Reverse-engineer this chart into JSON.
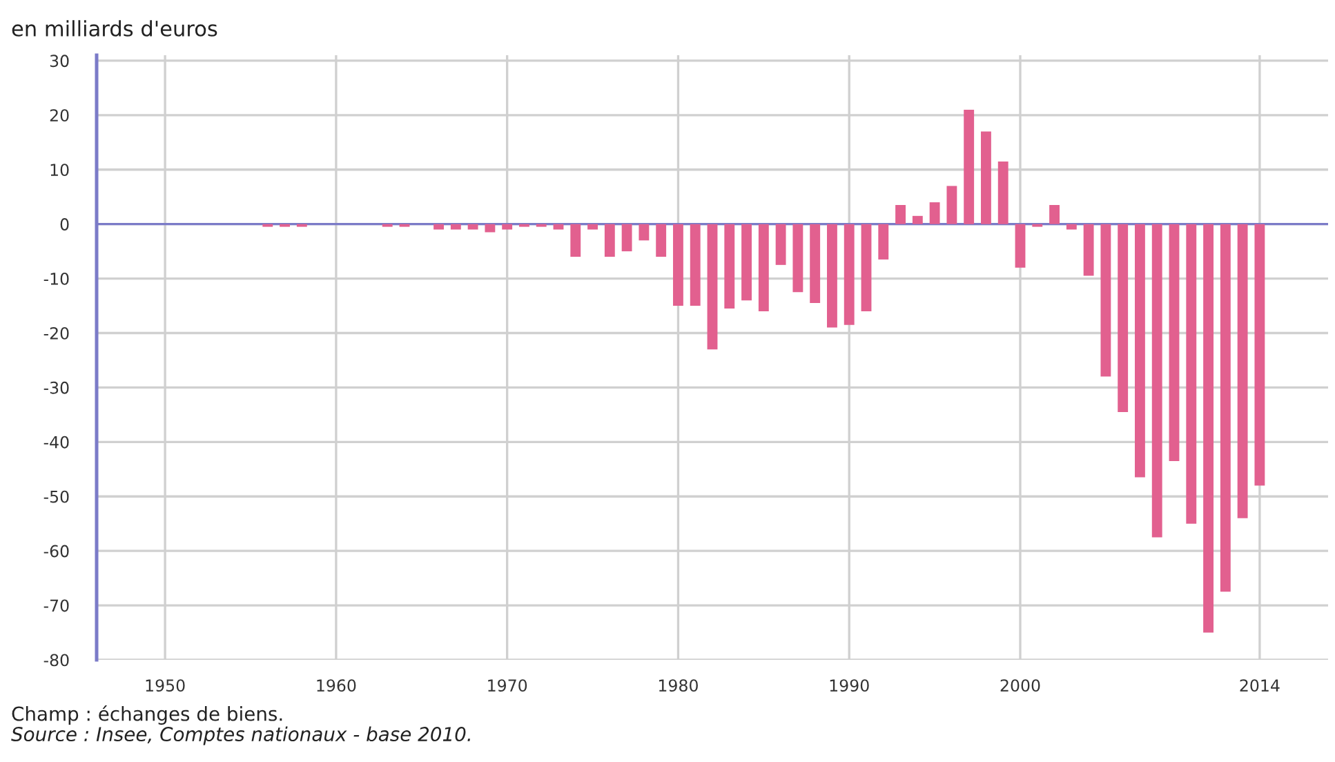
{
  "chart_data": {
    "type": "bar",
    "ylabel": "en milliards d'euros",
    "x": [
      1956,
      1957,
      1958,
      1959,
      1960,
      1961,
      1962,
      1963,
      1964,
      1965,
      1966,
      1967,
      1968,
      1969,
      1970,
      1971,
      1972,
      1973,
      1974,
      1975,
      1976,
      1977,
      1978,
      1979,
      1980,
      1981,
      1982,
      1983,
      1984,
      1985,
      1986,
      1987,
      1988,
      1989,
      1990,
      1991,
      1992,
      1993,
      1994,
      1995,
      1996,
      1997,
      1998,
      1999,
      2000,
      2001,
      2002,
      2003,
      2004,
      2005,
      2006,
      2007,
      2008,
      2009,
      2010,
      2011,
      2012,
      2013,
      2014
    ],
    "values": [
      -0.5,
      -0.5,
      -0.5,
      0,
      0,
      0,
      0,
      -0.5,
      -0.5,
      0,
      -1,
      -1,
      -1,
      -1.5,
      -1,
      -0.5,
      -0.5,
      -1,
      -6,
      -1,
      -6,
      -5,
      -3,
      -6,
      -15,
      -15,
      -23,
      -15.5,
      -14,
      -16,
      -7.5,
      -12.5,
      -14.5,
      -19,
      -18.5,
      -16,
      -6.5,
      3.5,
      1.5,
      4,
      7,
      21,
      17,
      11.5,
      -8,
      -0.5,
      3.5,
      -1,
      -9.5,
      -28,
      -34.5,
      -46.5,
      -57.5,
      -43.5,
      -55,
      -75,
      -67.5,
      -54,
      -48
    ],
    "color": "#e2608f",
    "xlim": [
      1946,
      2018
    ],
    "xticks": [
      1950,
      1960,
      1970,
      1980,
      1990,
      2000,
      2014
    ],
    "ylim": [
      -80,
      31
    ],
    "yticks": [
      -80,
      -70,
      -60,
      -50,
      -40,
      -30,
      -20,
      -10,
      0,
      10,
      20,
      30
    ],
    "grid": true,
    "ref_lines": [
      {
        "axis": "y",
        "value": 0,
        "color": "#7b7bc8"
      }
    ],
    "annotations": [
      "Champ : échanges de biens.",
      "Source : Insee, Comptes nationaux - base 2010."
    ]
  }
}
